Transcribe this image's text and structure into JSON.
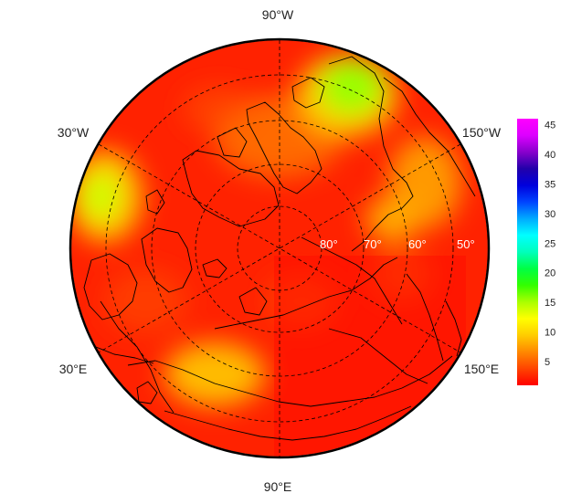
{
  "map": {
    "projection": "polar-stereographic-north",
    "longitude_labels": {
      "top": "90°W",
      "upper_left": "30°W",
      "upper_right": "150°W",
      "lower_left": "30°E",
      "lower_right": "150°E",
      "bottom": "90°E"
    },
    "latitude_labels": [
      "80°",
      "70°",
      "60°",
      "50°"
    ],
    "graticule_style": "dashed",
    "coastlines": true,
    "colors": {
      "background_field": "#ff2200",
      "frame": "#000000",
      "graticule": "#000000",
      "coastline": "#000000"
    }
  },
  "colorbar": {
    "min": 1,
    "max": 46,
    "ticks": [
      "45",
      "40",
      "35",
      "30",
      "25",
      "20",
      "15",
      "10",
      "5"
    ],
    "colors": [
      "#ff0000",
      "#ff4400",
      "#ff8800",
      "#ffcc00",
      "#ffff00",
      "#aaff00",
      "#33ff00",
      "#00ff44",
      "#00ffbb",
      "#00ffff",
      "#00aaff",
      "#0044ff",
      "#0000dd",
      "#2200aa",
      "#8800cc",
      "#dd00ff",
      "#ff00ff"
    ]
  }
}
